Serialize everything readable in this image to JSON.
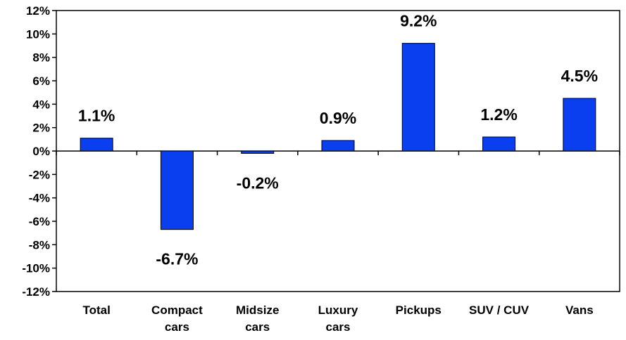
{
  "colors": {
    "bar": "#0a3ff0",
    "bar_stroke": "#000000",
    "axis": "#000000",
    "background": "#ffffff"
  },
  "chart_data": {
    "type": "bar",
    "categories": [
      [
        "Total"
      ],
      [
        "Compact",
        "cars"
      ],
      [
        "Midsize",
        "cars"
      ],
      [
        "Luxury",
        "cars"
      ],
      [
        "Pickups"
      ],
      [
        "SUV / CUV"
      ],
      [
        "Vans"
      ]
    ],
    "values": [
      1.1,
      -6.7,
      -0.2,
      0.9,
      9.2,
      1.2,
      4.5
    ],
    "data_labels": [
      "1.1%",
      "-6.7%",
      "-0.2%",
      "0.9%",
      "9.2%",
      "1.2%",
      "4.5%"
    ],
    "ylim": [
      -12,
      12
    ],
    "y_ticks": [
      12,
      10,
      8,
      6,
      4,
      2,
      0,
      -2,
      -4,
      -6,
      -8,
      -10,
      -12
    ],
    "y_tick_labels": [
      "12%",
      "10%",
      "8%",
      "6%",
      "4%",
      "2%",
      "0%",
      "-2%",
      "-4%",
      "-6%",
      "-8%",
      "-10%",
      "-12%"
    ],
    "title": "",
    "xlabel": "",
    "ylabel": "",
    "grid": false,
    "legend": "none"
  }
}
